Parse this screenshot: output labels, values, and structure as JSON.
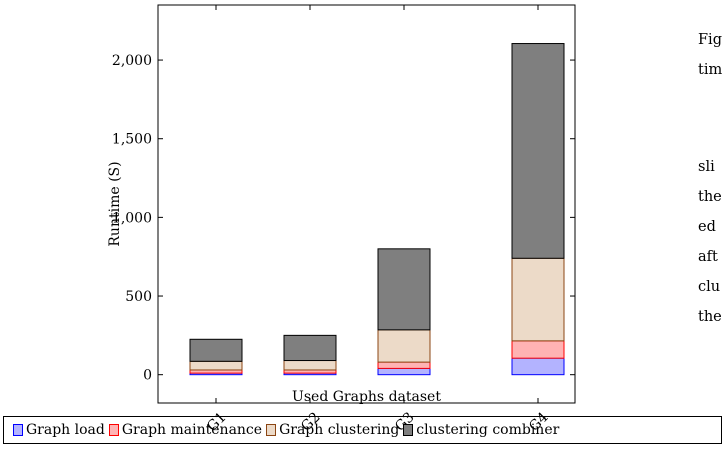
{
  "chart_data": {
    "type": "bar",
    "stacked": true,
    "categories": [
      "G1",
      "G2",
      "G3",
      "G4"
    ],
    "series": [
      {
        "name": "Graph load",
        "values": [
          10,
          10,
          40,
          105
        ],
        "fill": "#b3b3ff",
        "stroke": "#0000ff"
      },
      {
        "name": "Graph maintenance",
        "values": [
          20,
          20,
          40,
          110
        ],
        "fill": "#ffb3b3",
        "stroke": "#ff0000"
      },
      {
        "name": "Graph clustering",
        "values": [
          55,
          60,
          205,
          525
        ],
        "fill": "#ecdac8",
        "stroke": "#8b4513"
      },
      {
        "name": "clustering combiner",
        "values": [
          140,
          160,
          515,
          1365
        ],
        "fill": "#7f7f7f",
        "stroke": "#000000"
      }
    ],
    "xlabel": "Used Graphs dataset",
    "ylabel": "Runtime (S)",
    "ylim": [
      -180,
      2350
    ],
    "yticks": [
      0,
      500,
      1000,
      1500,
      2000
    ],
    "ytick_labels": [
      "0",
      "500",
      "1,000",
      "1,500",
      "2,000"
    ],
    "legend": "bottom"
  },
  "side_text": [
    "Fig",
    "tim",
    "sli",
    "the",
    "ed",
    "aft",
    "clu",
    "the"
  ]
}
